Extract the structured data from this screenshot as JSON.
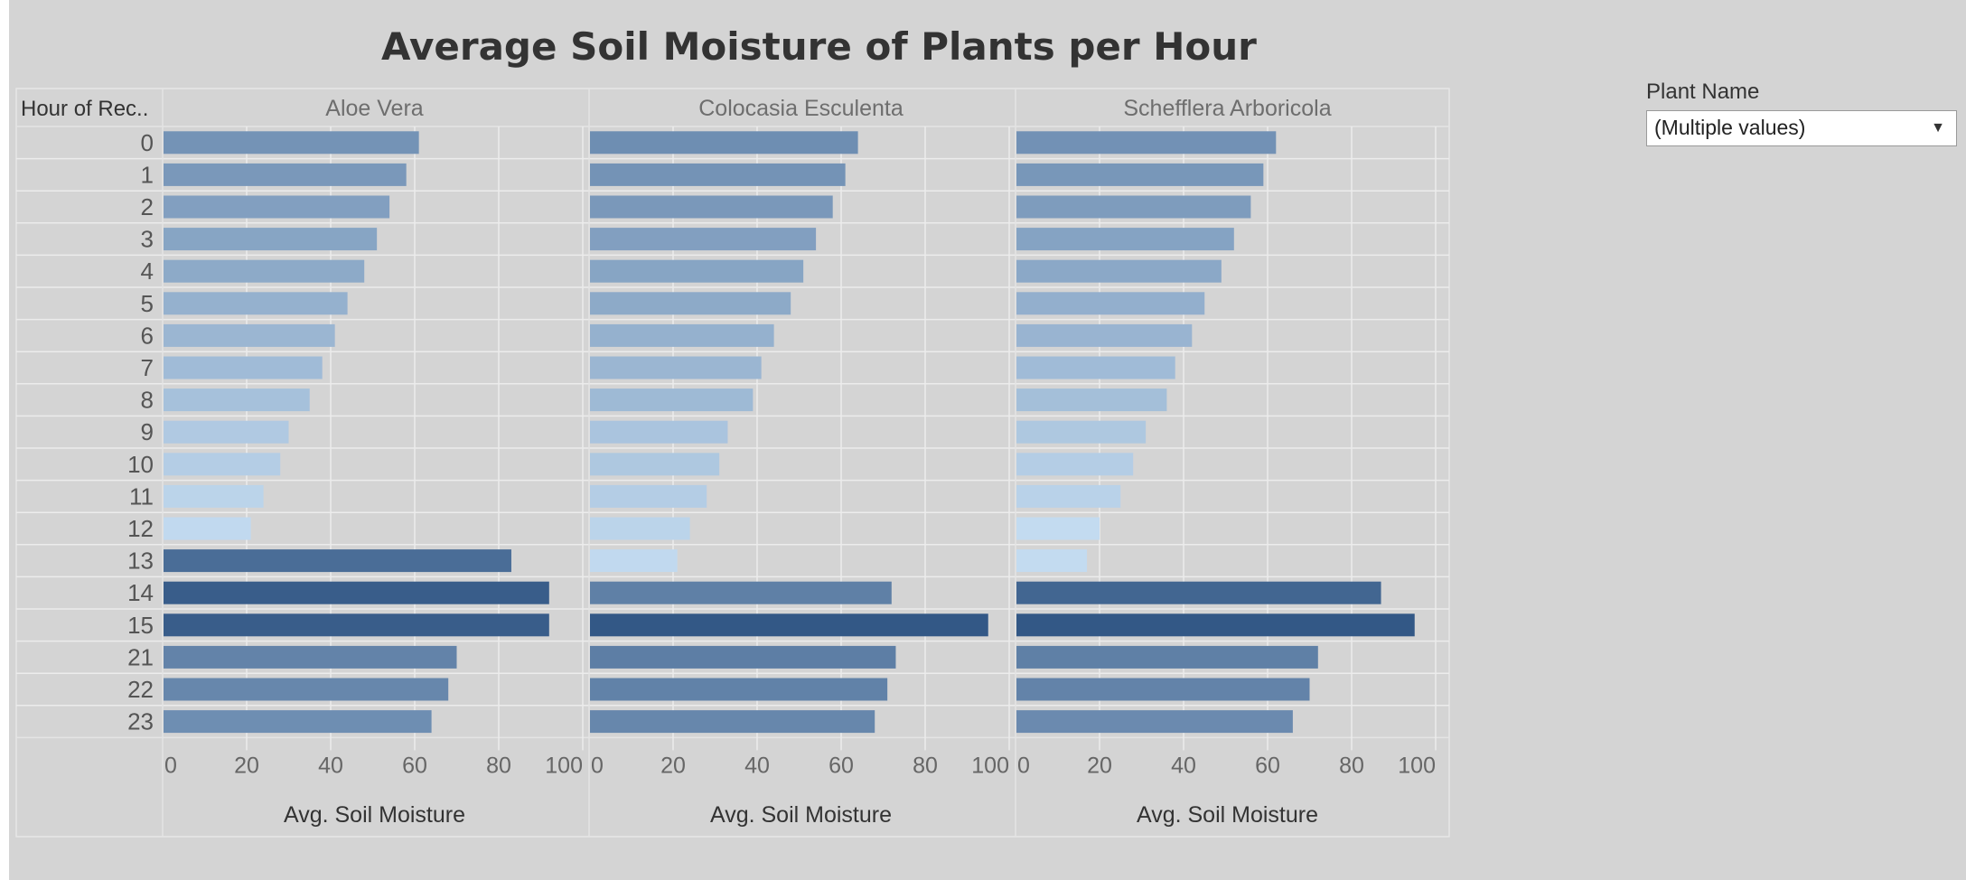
{
  "filter": {
    "label": "Plant Name",
    "value": "(Multiple values)"
  },
  "chart_data": {
    "type": "bar",
    "orientation": "horizontal",
    "title": "Average Soil Moisture of Plants per Hour",
    "row_header": "Hour of Rec..",
    "xlabel": "Avg. Soil Moisture",
    "xlim": [
      0,
      100
    ],
    "xticks": [
      0,
      20,
      40,
      60,
      80,
      100
    ],
    "grid": true,
    "color_scale": {
      "low": "#c3dbf0",
      "high": "#2f5483",
      "low_value": 20,
      "high_value": 97
    },
    "categories": [
      "0",
      "1",
      "2",
      "3",
      "4",
      "5",
      "6",
      "7",
      "8",
      "9",
      "10",
      "11",
      "12",
      "13",
      "14",
      "15",
      "21",
      "22",
      "23"
    ],
    "panels": [
      {
        "name": "Aloe Vera",
        "values": [
          61,
          58,
          54,
          51,
          48,
          44,
          41,
          38,
          35,
          30,
          28,
          24,
          21,
          83,
          92,
          92,
          70,
          68,
          64
        ]
      },
      {
        "name": "Colocasia Esculenta",
        "values": [
          64,
          61,
          58,
          54,
          51,
          48,
          44,
          41,
          39,
          33,
          31,
          28,
          24,
          21,
          72,
          95,
          73,
          71,
          68
        ]
      },
      {
        "name": "Schefflera Arboricola",
        "values": [
          62,
          59,
          56,
          52,
          49,
          45,
          42,
          38,
          36,
          31,
          28,
          25,
          20,
          17,
          87,
          95,
          72,
          70,
          66
        ]
      }
    ]
  }
}
